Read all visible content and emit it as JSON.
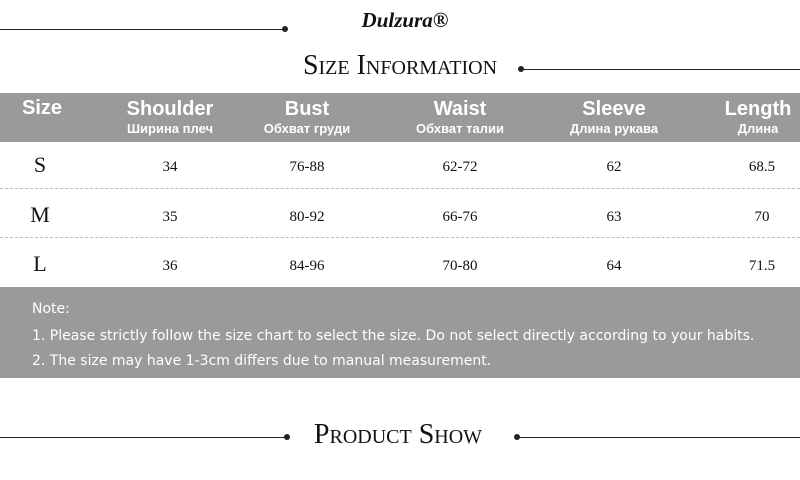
{
  "brand": "Dulzura®",
  "title": "Size Information",
  "table": {
    "columns": [
      {
        "en": "Size",
        "ru": null
      },
      {
        "en": "Shoulder",
        "ru": "Ширина плеч"
      },
      {
        "en": "Bust",
        "ru": "Обхват груди"
      },
      {
        "en": "Waist",
        "ru": "Обхват талии"
      },
      {
        "en": "Sleeve",
        "ru": "Длина рукава"
      },
      {
        "en": "Length",
        "ru": "Длина"
      }
    ],
    "rows": [
      [
        "S",
        "34",
        "76-88",
        "62-72",
        "62",
        "68.5"
      ],
      [
        "M",
        "35",
        "80-92",
        "66-76",
        "63",
        "70"
      ],
      [
        "L",
        "36",
        "84-96",
        "70-80",
        "64",
        "71.5"
      ]
    ]
  },
  "note": {
    "heading": "Note:",
    "lines": [
      "1. Please strictly follow the size chart to select the size. Do not select directly according to your habits.",
      "2. The size may have 1-3cm differs due to manual measurement."
    ]
  },
  "section": "Product Show"
}
